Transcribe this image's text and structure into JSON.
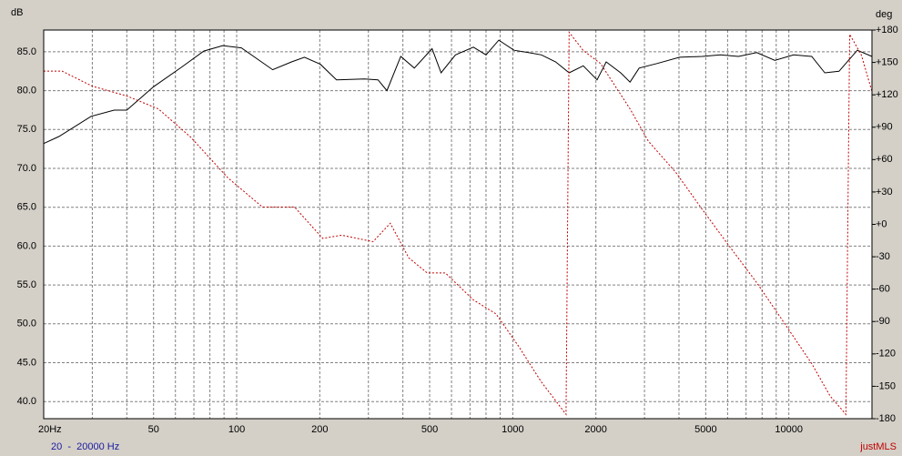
{
  "chart_data": {
    "type": "line",
    "y_label": "dB",
    "y2_label": "deg",
    "footer": "20  -  20000 Hz",
    "brand": "justMLS",
    "log_x": true,
    "grid": true,
    "xlim": [
      20,
      20000
    ],
    "xticks": [
      {
        "value": 20,
        "label": "20Hz"
      },
      50,
      100,
      200,
      500,
      1000,
      2000,
      5000,
      10000
    ],
    "xminor": [
      30,
      40,
      60,
      70,
      80,
      90,
      300,
      400,
      600,
      700,
      800,
      900,
      3000,
      4000,
      6000,
      7000,
      8000,
      9000,
      20000
    ],
    "ylim": [
      37.8,
      87.8
    ],
    "yticks": [
      {
        "value": 85,
        "label": "85.0"
      },
      {
        "value": 80,
        "label": "80.0"
      },
      {
        "value": 75,
        "label": "75.0"
      },
      {
        "value": 70,
        "label": "70.0"
      },
      {
        "value": 65,
        "label": "65.0"
      },
      {
        "value": 60,
        "label": "60.0"
      },
      {
        "value": 55,
        "label": "55.0"
      },
      {
        "value": 50,
        "label": "50.0"
      },
      {
        "value": 45,
        "label": "45.0"
      },
      {
        "value": 40,
        "label": "40.0"
      }
    ],
    "y2lim": [
      -180,
      180
    ],
    "y2ticks": [
      {
        "value": 180,
        "label": "+180"
      },
      {
        "value": 150,
        "label": "+150"
      },
      {
        "value": 120,
        "label": "+120"
      },
      {
        "value": 90,
        "label": "+90"
      },
      {
        "value": 60,
        "label": "+60"
      },
      {
        "value": 30,
        "label": "+30"
      },
      {
        "value": 0,
        "label": "+0"
      },
      -30,
      -60,
      -90,
      -120,
      -150,
      -180
    ],
    "series": [
      {
        "color": "#000000",
        "style": "solid",
        "x": [
          20,
          22.7,
          29.7,
          36,
          40,
          50,
          63,
          76,
          89,
          104,
          135,
          158,
          176,
          201,
          230,
          290,
          325,
          350,
          393,
          440,
          510,
          550,
          620,
          720,
          800,
          890,
          1010,
          1140,
          1270,
          1430,
          1600,
          1800,
          2020,
          2180,
          2460,
          2660,
          2870,
          3340,
          4020,
          4850,
          5650,
          6570,
          7650,
          8900,
          10400,
          12100,
          13500,
          15200,
          17700,
          20000
        ],
        "values": [
          73.2,
          74.1,
          76.7,
          77.5,
          77.5,
          80.5,
          83,
          85.1,
          85.8,
          85.5,
          82.7,
          83.7,
          84.3,
          83.4,
          81.4,
          81.5,
          81.4,
          80,
          84.4,
          82.9,
          85.4,
          82.3,
          84.6,
          85.6,
          84.6,
          86.5,
          85.2,
          84.9,
          84.6,
          83.7,
          82.3,
          83.2,
          81.4,
          83.7,
          82.3,
          81.1,
          82.9,
          83.5,
          84.3,
          84.4,
          84.6,
          84.4,
          84.9,
          83.9,
          84.6,
          84.4,
          82.3,
          82.5,
          85.2,
          84.4
        ]
      },
      {
        "color": "#c00000",
        "style": "dashed",
        "axis": "y2",
        "x": [
          20,
          23.3,
          30,
          40,
          52,
          68,
          93,
          124,
          162,
          205,
          240,
          312,
          360,
          420,
          490,
          570,
          720,
          870,
          1050,
          1270,
          1560,
          1600,
          1800,
          2080,
          2660,
          3100,
          3900,
          4850,
          6080,
          7650,
          9600,
          12100,
          14100,
          16100,
          16600,
          18300,
          20000
        ],
        "values": [
          142,
          142,
          128,
          119,
          107,
          81,
          43,
          16,
          16,
          -13,
          -10,
          -16,
          1,
          -31,
          -45,
          -45,
          -70,
          -83,
          -113,
          -146,
          -176,
          178,
          161,
          149,
          107,
          77,
          48,
          14,
          -20,
          -54,
          -91,
          -129,
          -159,
          -176,
          176,
          157,
          123
        ]
      }
    ]
  }
}
